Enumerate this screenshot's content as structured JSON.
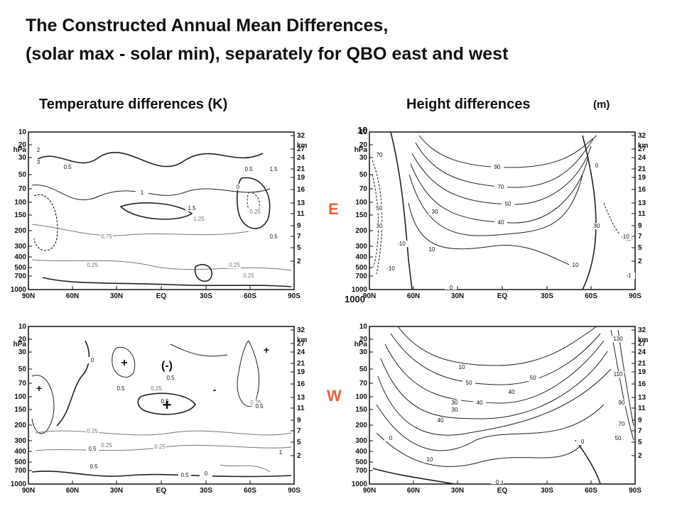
{
  "title": {
    "line1": "The Constructed Annual Mean Differences,",
    "line2": "(solar max - solar min), separately for QBO east and west"
  },
  "headers": {
    "temperature": "Temperature differences  (K)",
    "height": "Height differences",
    "height_unit": "(m)"
  },
  "row_markers": {
    "east": "E",
    "west": "W",
    "marker_color": "#e8613a"
  },
  "annotations": {
    "top_pressure": "10",
    "bottom_pressure": "1000"
  },
  "axes": {
    "x_ticks": [
      "90N",
      "60N",
      "30N",
      "EQ",
      "30S",
      "60S",
      "90S"
    ],
    "p_ticks": [
      "10",
      "20",
      "30",
      "50",
      "70",
      "100",
      "150",
      "200",
      "300",
      "400",
      "500",
      "700",
      "1000"
    ],
    "p_unit": "hPa",
    "z_ticks": [
      "32",
      "27",
      "24",
      "21",
      "19",
      "16",
      "13",
      "11",
      "9",
      "7",
      "5",
      "2"
    ],
    "z_unit": "km"
  },
  "panels": [
    {
      "id": "temp-east",
      "contours": [
        "0.5",
        "1",
        "1.5",
        "2",
        "3",
        "0.75",
        "1.25",
        "0",
        "-0.25",
        "0.25",
        "0.5",
        "1.5",
        "0.5",
        "0.25",
        "0.25"
      ],
      "symbols": []
    },
    {
      "id": "height-east",
      "contours": [
        "90",
        "70",
        "50",
        "40",
        "30",
        "10",
        "0",
        "30",
        "10",
        "0",
        "-10",
        "-10",
        "-10",
        "70",
        "50",
        "30",
        "-1"
      ],
      "symbols": []
    },
    {
      "id": "temp-west",
      "contours": [
        "0",
        "0.5",
        "0.5",
        "0.25",
        "0.5",
        "0.25",
        "0.5",
        "0.75",
        "0.5",
        "0.25",
        "0.25",
        "0.5",
        "0.5",
        "0",
        "0.5",
        "1"
      ],
      "symbols": [
        "+",
        "(-)",
        "+",
        "+",
        "+",
        "-"
      ]
    },
    {
      "id": "height-west",
      "contours": [
        "10",
        "50",
        "40",
        "40",
        "30",
        "50",
        "40",
        "30",
        "0",
        "10",
        "0",
        "0",
        "130",
        "110",
        "90",
        "70",
        "50"
      ],
      "symbols": []
    }
  ]
}
